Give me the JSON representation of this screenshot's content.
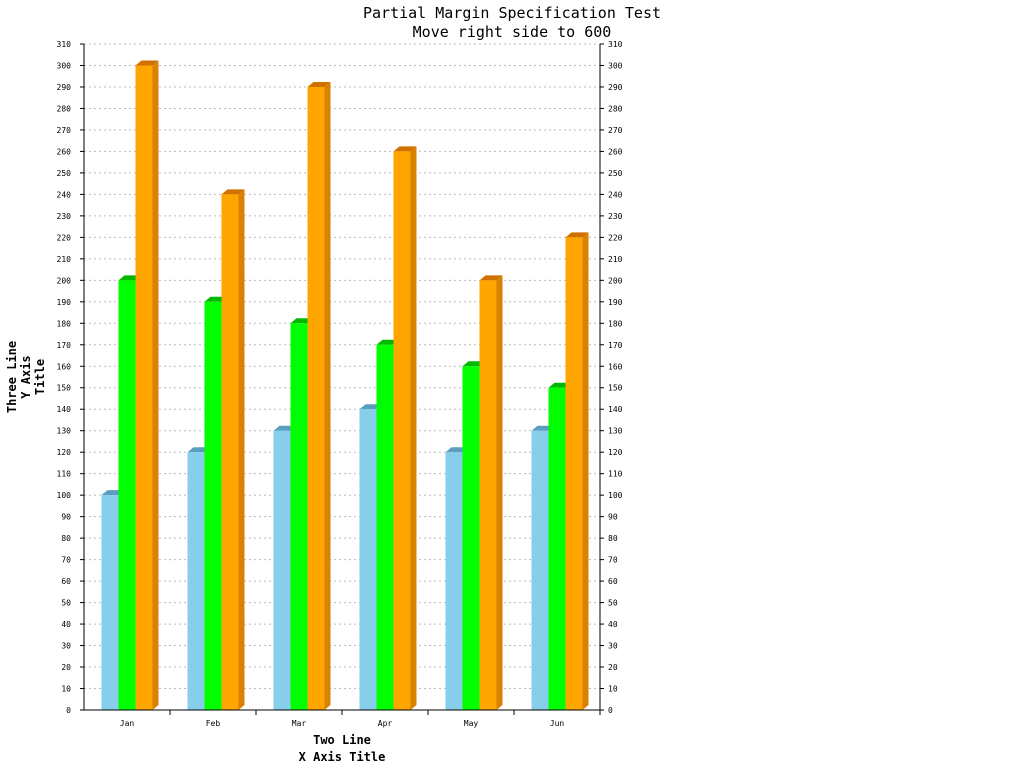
{
  "chart_data": {
    "type": "bar",
    "title": "Partial Margin Specification Test",
    "subtitle": "Move right side to 600",
    "xlabel_lines": [
      "Two Line",
      "X Axis Title"
    ],
    "ylabel_lines": [
      "Three Line",
      "Y Axis",
      "Title"
    ],
    "categories": [
      "Jan",
      "Feb",
      "Mar",
      "Apr",
      "May",
      "Jun"
    ],
    "series": [
      {
        "values": [
          100,
          120,
          130,
          140,
          120,
          130
        ],
        "color": "#87ceeb",
        "top_color": "#5a9fc0",
        "side_color": "#6ab0d4"
      },
      {
        "values": [
          200,
          190,
          180,
          170,
          160,
          150
        ],
        "color": "#00ff00",
        "top_color": "#00b800",
        "side_color": "#00cc00"
      },
      {
        "values": [
          300,
          240,
          290,
          260,
          200,
          220
        ],
        "color": "#ffa500",
        "top_color": "#d07000",
        "side_color": "#d98200"
      }
    ],
    "ylim": [
      0,
      310
    ],
    "ytick_step": 10,
    "grid": true,
    "legend": "none",
    "secondary_y_axis": true
  }
}
